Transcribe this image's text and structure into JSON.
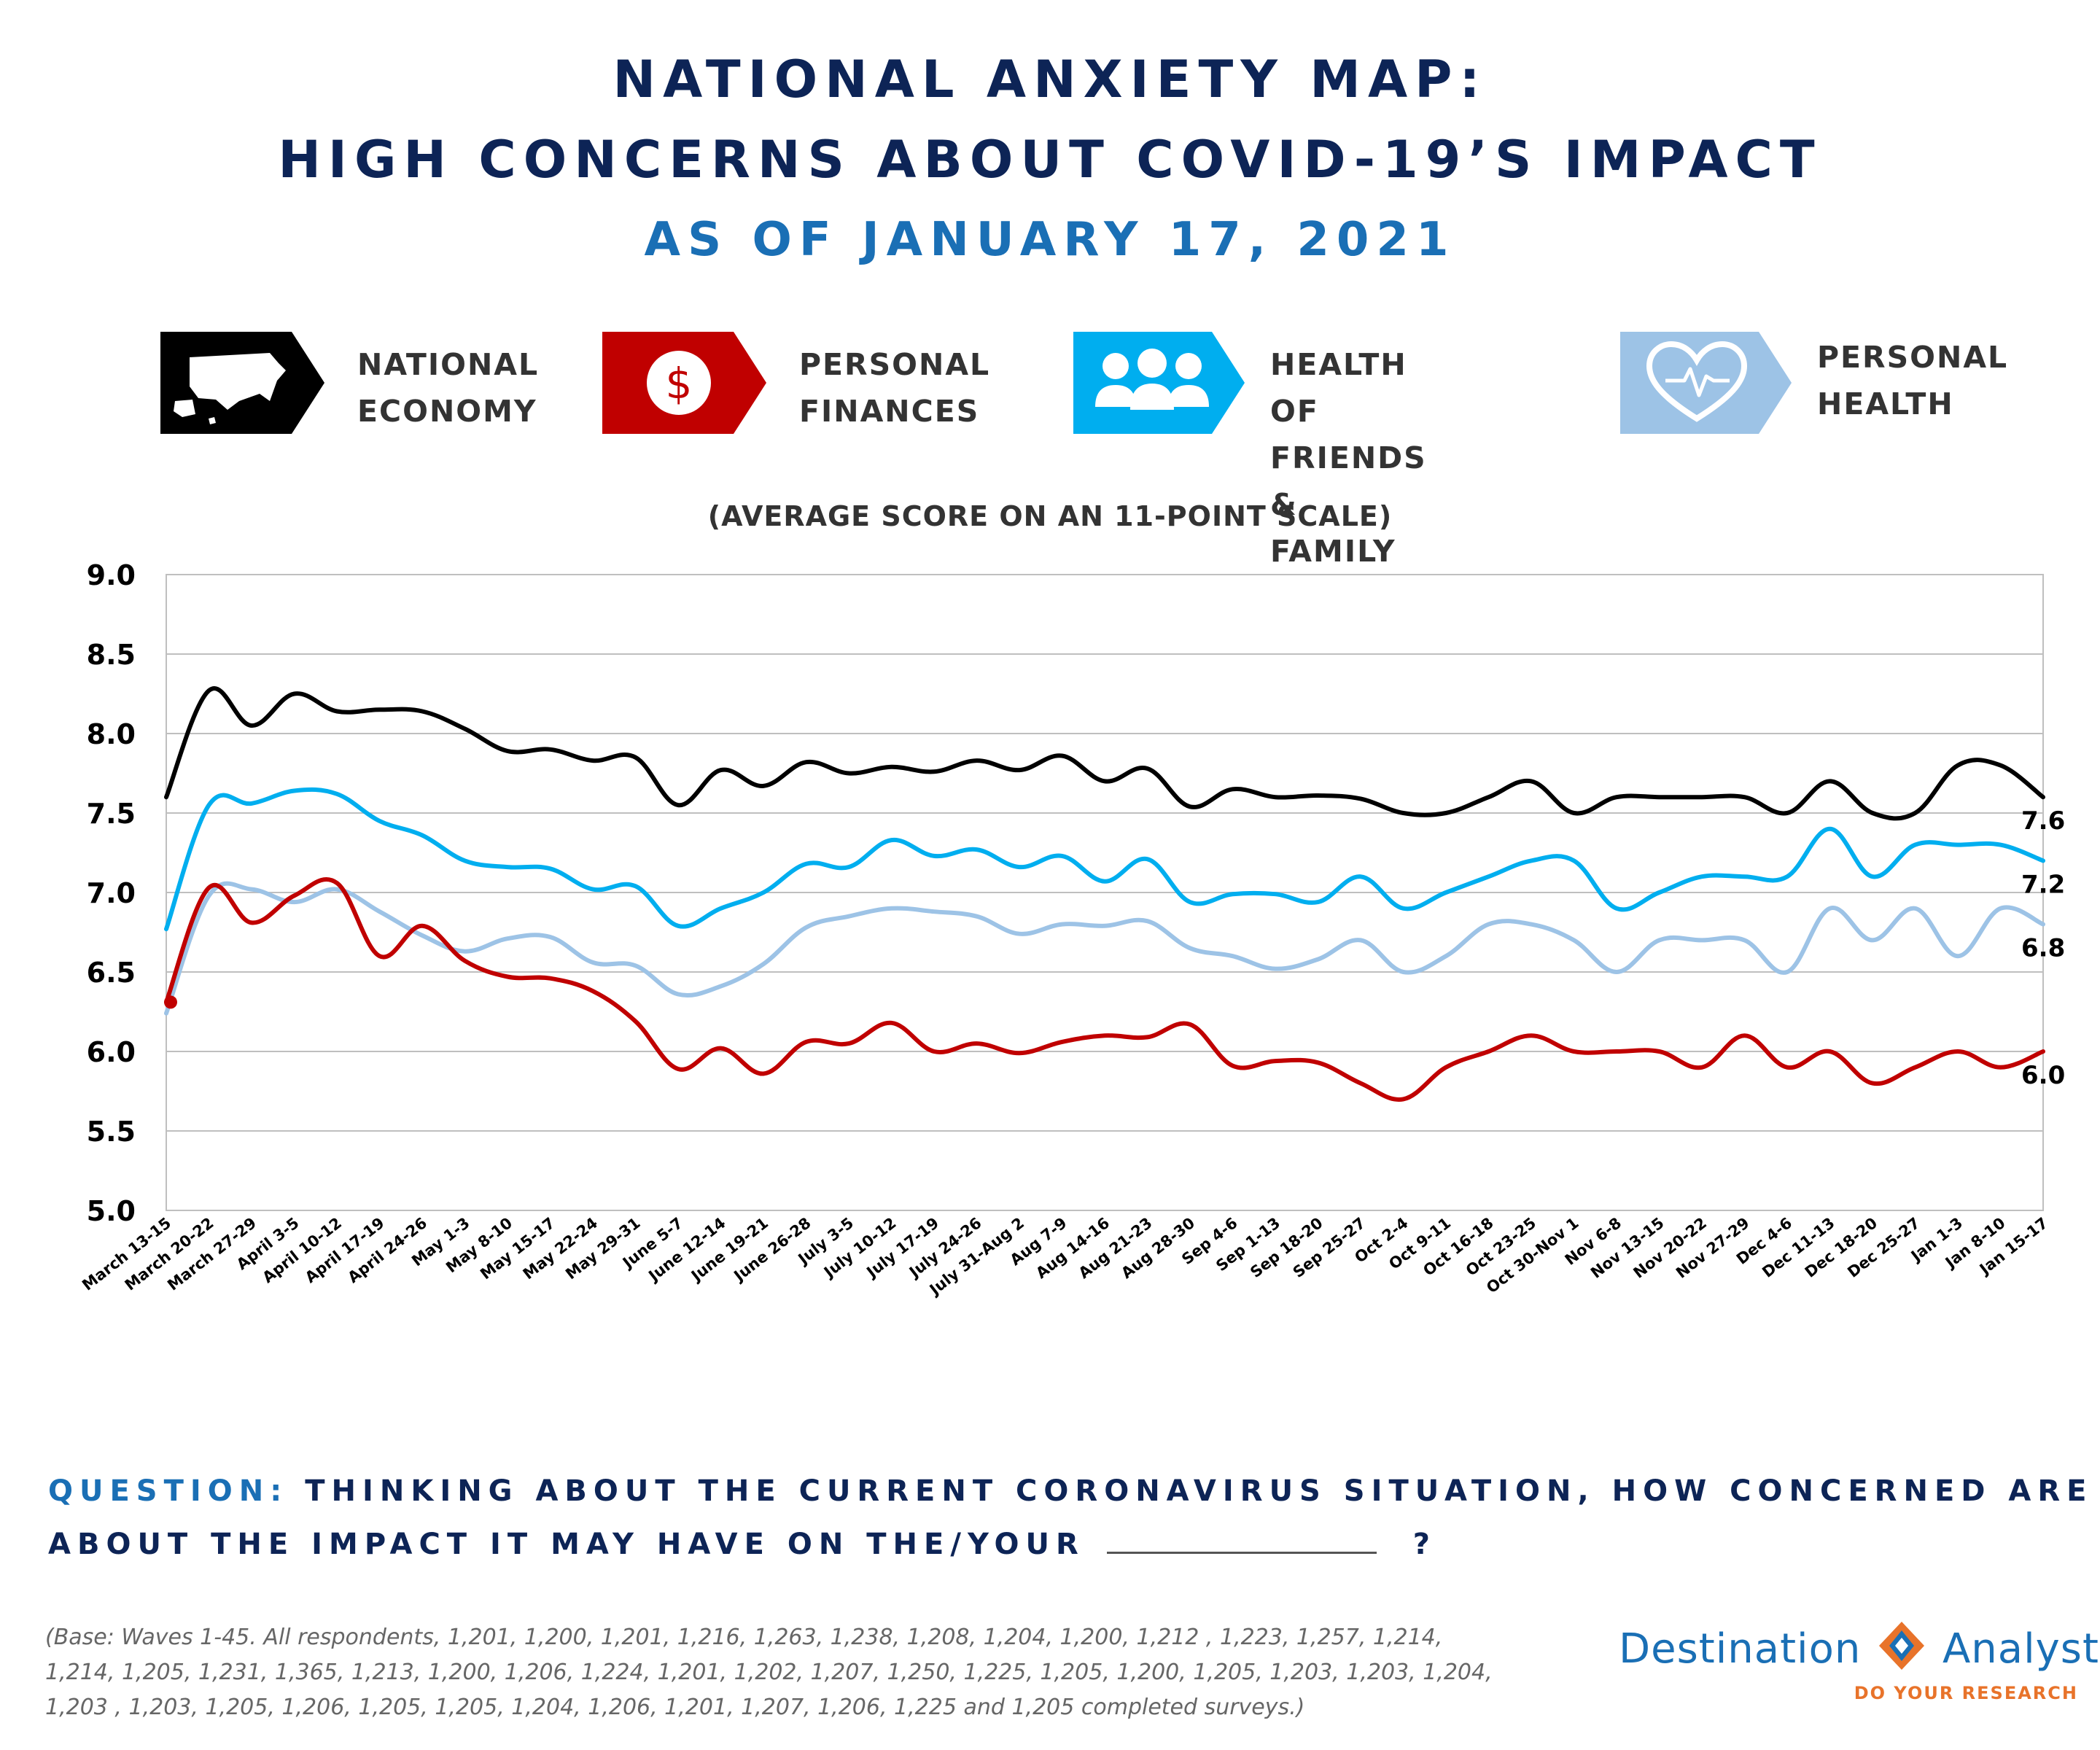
{
  "title": {
    "line1": "NATIONAL ANXIETY MAP:",
    "line2": "HIGH CONCERNS ABOUT COVID-19’S IMPACT",
    "line3": "AS OF JANUARY 17, 2021"
  },
  "legend": [
    {
      "line1": "NATIONAL",
      "line2": "ECONOMY",
      "color": "#000000",
      "icon": "us-map-icon"
    },
    {
      "line1": "PERSONAL",
      "line2": "FINANCES",
      "color": "#c00000",
      "icon": "dollar-coin-icon"
    },
    {
      "line1": "HEALTH OF",
      "line2": "FRIENDS & FAMILY",
      "color": "#00aeef",
      "icon": "people-group-icon"
    },
    {
      "line1": "PERSONAL",
      "line2": "HEALTH",
      "color": "#9dc3e6",
      "icon": "heart-pulse-icon"
    }
  ],
  "chart_data": {
    "type": "line",
    "title": "(AVERAGE SCORE ON AN 11-POINT SCALE)",
    "ylim": [
      5.0,
      9.0
    ],
    "yticks": [
      "5.0",
      "5.5",
      "6.0",
      "6.5",
      "7.0",
      "7.5",
      "8.0",
      "8.5",
      "9.0"
    ],
    "grid": true,
    "categories": [
      "March 13-15",
      "March 20-22",
      "March 27-29",
      "April 3-5",
      "April 10-12",
      "April 17-19",
      "April 24-26",
      "May 1-3",
      "May 8-10",
      "May 15-17",
      "May 22-24",
      "May 29-31",
      "June 5-7",
      "June 12-14",
      "June 19-21",
      "June 26-28",
      "July 3-5",
      "July 10-12",
      "July 17-19",
      "July 24-26",
      "July 31-Aug 2",
      "Aug 7-9",
      "Aug 14-16",
      "Aug 21-23",
      "Aug 28-30",
      "Sep 4-6",
      "Sep 1-13",
      "Sep 18-20",
      "Sep 25-27",
      "Oct 2-4",
      "Oct 9-11",
      "Oct 16-18",
      "Oct 23-25",
      "Oct 30-Nov 1",
      "Nov 6-8",
      "Nov 13-15",
      "Nov 20-22",
      "Nov 27-29",
      "Dec 4-6",
      "Dec 11-13",
      "Dec 18-20",
      "Dec 25-27",
      "Jan 1-3",
      "Jan 8-10",
      "Jan 15-17"
    ],
    "series": [
      {
        "key": "national_economy",
        "color": "#000000",
        "end_label": "7.6",
        "values": [
          7.6,
          8.27,
          8.05,
          8.25,
          8.14,
          8.15,
          8.14,
          8.03,
          7.89,
          7.9,
          7.83,
          7.85,
          7.55,
          7.77,
          7.67,
          7.82,
          7.75,
          7.79,
          7.76,
          7.83,
          7.77,
          7.86,
          7.7,
          7.78,
          7.54,
          7.65,
          7.6,
          7.61,
          7.59,
          7.5,
          7.5,
          7.6,
          7.7,
          7.5,
          7.6,
          7.6,
          7.6,
          7.6,
          7.5,
          7.7,
          7.5,
          7.5,
          7.8,
          7.8,
          7.6
        ]
      },
      {
        "key": "health_friends_family",
        "color": "#00aeef",
        "end_label": "7.2",
        "values": [
          6.77,
          7.55,
          7.56,
          7.64,
          7.62,
          7.45,
          7.36,
          7.2,
          7.16,
          7.15,
          7.02,
          7.04,
          6.79,
          6.9,
          7.0,
          7.18,
          7.16,
          7.33,
          7.23,
          7.27,
          7.16,
          7.23,
          7.07,
          7.21,
          6.94,
          6.99,
          6.99,
          6.94,
          7.1,
          6.9,
          7.0,
          7.1,
          7.2,
          7.2,
          6.9,
          7.0,
          7.1,
          7.1,
          7.1,
          7.4,
          7.1,
          7.3,
          7.3,
          7.3,
          7.2
        ]
      },
      {
        "key": "personal_health",
        "color": "#9dc3e6",
        "end_label": "6.8",
        "values": [
          6.24,
          6.98,
          7.02,
          6.94,
          7.02,
          6.88,
          6.73,
          6.63,
          6.71,
          6.72,
          6.56,
          6.54,
          6.36,
          6.41,
          6.55,
          6.78,
          6.85,
          6.9,
          6.88,
          6.85,
          6.74,
          6.8,
          6.79,
          6.82,
          6.65,
          6.6,
          6.52,
          6.58,
          6.7,
          6.5,
          6.6,
          6.8,
          6.8,
          6.7,
          6.5,
          6.7,
          6.7,
          6.7,
          6.5,
          6.9,
          6.7,
          6.9,
          6.6,
          6.9,
          6.8
        ]
      },
      {
        "key": "personal_finances",
        "color": "#c00000",
        "end_label": "6.0",
        "values": [
          6.31,
          7.03,
          6.81,
          6.98,
          7.06,
          6.6,
          6.79,
          6.57,
          6.47,
          6.46,
          6.38,
          6.19,
          5.89,
          6.02,
          5.86,
          6.06,
          6.05,
          6.18,
          6.0,
          6.05,
          5.99,
          6.06,
          6.1,
          6.09,
          6.17,
          5.91,
          5.94,
          5.93,
          5.8,
          5.7,
          5.9,
          6.0,
          6.1,
          6.0,
          6.0,
          6.0,
          5.9,
          6.1,
          5.9,
          6.0,
          5.8,
          5.9,
          6.0,
          5.9,
          6.0
        ]
      }
    ]
  },
  "question": {
    "label": "QUESTION:",
    "line1": "THINKING ABOUT THE CURRENT CORONAVIRUS SITUATION, HOW CONCERNED ARE YOU",
    "line2": "ABOUT THE IMPACT IT MAY HAVE ON THE/YOUR",
    "end": "?"
  },
  "base_note": "(Base: Waves 1-45.  All respondents, 1,201, 1,200, 1,201, 1,216, 1,263, 1,238, 1,208, 1,204, 1,200, 1,212 , 1,223, 1,257, 1,214, 1,214, 1,205, 1,231, 1,365, 1,213, 1,200, 1,206, 1,224, 1,201, 1,202, 1,207, 1,250, 1,225, 1,205, 1,200, 1,205, 1,203, 1,203, 1,204, 1,203 , 1,203, 1,205, 1,206, 1,205, 1,205, 1,204, 1,206, 1,201, 1,207, 1,206, 1,225 and 1,205 completed surveys.)",
  "brand": {
    "name_part1": "Destination",
    "name_part2": "Analysts",
    "tagline": "DO YOUR RESEARCH",
    "colors": {
      "blue": "#1a6fb5",
      "orange": "#e8732a"
    }
  }
}
